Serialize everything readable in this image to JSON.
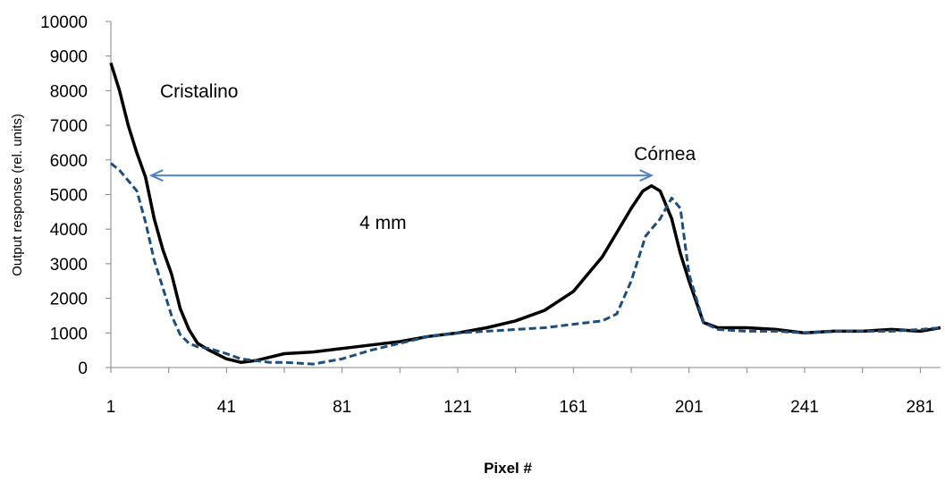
{
  "chart_data": {
    "type": "line",
    "title": "",
    "xlabel": "Pixel #",
    "ylabel": "Output response (rel. units)",
    "xlim": [
      1,
      288
    ],
    "ylim": [
      0,
      10000
    ],
    "x_ticks": [
      1,
      41,
      81,
      121,
      161,
      201,
      241,
      281
    ],
    "y_ticks": [
      0,
      1000,
      2000,
      3000,
      4000,
      5000,
      6000,
      7000,
      8000,
      9000,
      10000
    ],
    "grid": false,
    "legend": "none",
    "series": [
      {
        "style": "solid",
        "color": "#000000",
        "x": [
          1,
          4,
          7,
          10,
          13,
          16,
          19,
          22,
          25,
          28,
          31,
          35,
          41,
          46,
          51,
          56,
          61,
          71,
          81,
          91,
          101,
          111,
          121,
          131,
          141,
          151,
          161,
          166,
          171,
          176,
          181,
          185,
          188,
          191,
          195,
          198,
          201,
          206,
          211,
          221,
          231,
          241,
          251,
          261,
          271,
          281,
          288
        ],
        "y": [
          8800,
          8000,
          7000,
          6200,
          5500,
          4300,
          3400,
          2700,
          1700,
          1100,
          700,
          500,
          250,
          150,
          200,
          300,
          400,
          450,
          550,
          650,
          750,
          900,
          1000,
          1150,
          1350,
          1650,
          2200,
          2700,
          3200,
          3900,
          4600,
          5100,
          5250,
          5100,
          4300,
          3300,
          2500,
          1300,
          1150,
          1150,
          1100,
          1000,
          1050,
          1050,
          1100,
          1050,
          1150
        ]
      },
      {
        "style": "dashed",
        "color": "#1f4e79",
        "x": [
          1,
          4,
          7,
          10,
          13,
          16,
          19,
          22,
          25,
          28,
          31,
          35,
          41,
          46,
          51,
          56,
          61,
          71,
          81,
          91,
          101,
          111,
          121,
          131,
          141,
          151,
          161,
          166,
          171,
          176,
          181,
          186,
          191,
          195,
          198,
          201,
          206,
          211,
          221,
          231,
          241,
          251,
          261,
          271,
          281,
          288
        ],
        "y": [
          5900,
          5700,
          5400,
          5100,
          4200,
          3100,
          2300,
          1500,
          950,
          700,
          600,
          550,
          400,
          250,
          200,
          150,
          150,
          100,
          250,
          500,
          700,
          900,
          1000,
          1050,
          1100,
          1150,
          1250,
          1300,
          1350,
          1550,
          2500,
          3800,
          4300,
          4900,
          4600,
          2700,
          1300,
          1100,
          1050,
          1050,
          1000,
          1050,
          1050,
          1050,
          1100,
          1150
        ]
      }
    ],
    "annotations": [
      {
        "text": "Cristalino",
        "x": 18,
        "y": 7800
      },
      {
        "text": "Córnea",
        "x": 182,
        "y": 6000
      },
      {
        "text": "4 mm",
        "x": 87,
        "y": 4000
      }
    ],
    "arrow": {
      "x_from": 15,
      "x_to": 188,
      "y": 5550,
      "color": "#4f81bd"
    }
  }
}
